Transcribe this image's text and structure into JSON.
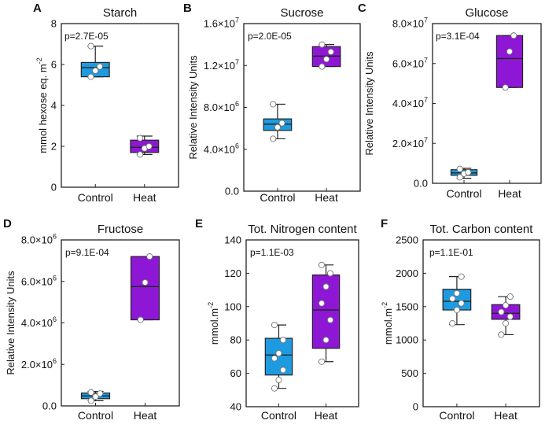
{
  "colors": {
    "control": "#1e9be0",
    "heat": "#8e17d6"
  },
  "chart_data": [
    {
      "type": "box",
      "letter": "A",
      "title": "Starch",
      "pvalue": "p=2.7E-05",
      "ylabel": "mmol hexose eq. m",
      "ylabel_sup": "-2",
      "ylim": [
        0,
        8
      ],
      "yticks": [
        {
          "v": 0,
          "label": "0"
        },
        {
          "v": 2,
          "label": "2"
        },
        {
          "v": 4,
          "label": "4"
        },
        {
          "v": 6,
          "label": "6"
        },
        {
          "v": 8,
          "label": "8"
        }
      ],
      "categories": [
        "Control",
        "Heat"
      ],
      "groups": [
        {
          "min": 5.4,
          "q1": 5.4,
          "median": 5.85,
          "q3": 6.1,
          "max": 6.9,
          "points": [
            5.4,
            5.7,
            5.9,
            6.9
          ]
        },
        {
          "min": 1.6,
          "q1": 1.7,
          "median": 1.95,
          "q3": 2.3,
          "max": 2.5,
          "points": [
            1.6,
            1.9,
            2.0,
            2.4
          ]
        }
      ]
    },
    {
      "type": "box",
      "letter": "B",
      "title": "Sucrose",
      "pvalue": "p=2.0E-05",
      "ylabel": "Relative Intensity Units",
      "ylabel_sup": "",
      "ylim": [
        0,
        16000000
      ],
      "yticks": [
        {
          "v": 0,
          "label": "0.0"
        },
        {
          "v": 4000000,
          "label": "4.0×10",
          "sup": "6"
        },
        {
          "v": 8000000,
          "label": "8.0×10",
          "sup": "6"
        },
        {
          "v": 12000000,
          "label": "1.2×10",
          "sup": "7"
        },
        {
          "v": 16000000,
          "label": "1.6×10",
          "sup": "7"
        }
      ],
      "categories": [
        "Control",
        "Heat"
      ],
      "groups": [
        {
          "min": 5000000,
          "q1": 5800000,
          "median": 6400000,
          "q3": 6900000,
          "max": 8300000,
          "points": [
            5000000,
            6100000,
            6500000,
            8300000
          ]
        },
        {
          "min": 11900000,
          "q1": 11900000,
          "median": 12900000,
          "q3": 13800000,
          "max": 14000000,
          "points": [
            11900000,
            12600000,
            13300000,
            14000000
          ]
        }
      ]
    },
    {
      "type": "box",
      "letter": "C",
      "title": "Glucose",
      "pvalue": "p=3.1E-04",
      "ylabel": "Relative Intensity Units",
      "ylabel_sup": "",
      "ylim": [
        0,
        80000000
      ],
      "yticks": [
        {
          "v": 0,
          "label": "0.0"
        },
        {
          "v": 20000000,
          "label": "2.0×10",
          "sup": "7"
        },
        {
          "v": 40000000,
          "label": "4.0×10",
          "sup": "7"
        },
        {
          "v": 60000000,
          "label": "6.0×10",
          "sup": "7"
        },
        {
          "v": 80000000,
          "label": "8.0×10",
          "sup": "7"
        }
      ],
      "categories": [
        "Control",
        "Heat"
      ],
      "groups": [
        {
          "min": 2500000,
          "q1": 4000000,
          "median": 5200000,
          "q3": 6800000,
          "max": 7500000,
          "points": [
            3000000,
            4800000,
            5500000,
            7200000
          ]
        },
        {
          "min": 48000000,
          "q1": 48000000,
          "median": 62500000,
          "q3": 74000000,
          "max": 74000000,
          "points": [
            48000000,
            66000000,
            74000000
          ]
        }
      ]
    },
    {
      "type": "box",
      "letter": "D",
      "title": "Fructose",
      "pvalue": "p=9.1E-04",
      "ylabel": "Relative Intensity Units",
      "ylabel_sup": "",
      "ylim": [
        0,
        8000000
      ],
      "yticks": [
        {
          "v": 0,
          "label": "0.0"
        },
        {
          "v": 2000000,
          "label": "2.0×10",
          "sup": "6"
        },
        {
          "v": 4000000,
          "label": "4.0×10",
          "sup": "6"
        },
        {
          "v": 6000000,
          "label": "6.0×10",
          "sup": "6"
        },
        {
          "v": 8000000,
          "label": "8.0×10",
          "sup": "6"
        }
      ],
      "categories": [
        "Control",
        "Heat"
      ],
      "groups": [
        {
          "min": 250000,
          "q1": 350000,
          "median": 480000,
          "q3": 620000,
          "max": 700000,
          "points": [
            250000,
            450000,
            600000,
            650000
          ]
        },
        {
          "min": 4150000,
          "q1": 4150000,
          "median": 5750000,
          "q3": 7200000,
          "max": 7200000,
          "points": [
            4150000,
            5950000,
            7200000
          ]
        }
      ]
    },
    {
      "type": "box",
      "letter": "E",
      "title": "Tot. Nitrogen content",
      "pvalue": "p=1.1E-03",
      "ylabel": "mmol.m",
      "ylabel_sup": "-2",
      "ylim": [
        40,
        140
      ],
      "yticks": [
        {
          "v": 40,
          "label": "40"
        },
        {
          "v": 60,
          "label": "60"
        },
        {
          "v": 80,
          "label": "80"
        },
        {
          "v": 100,
          "label": "100"
        },
        {
          "v": 120,
          "label": "120"
        },
        {
          "v": 140,
          "label": "140"
        }
      ],
      "categories": [
        "Control",
        "Heat"
      ],
      "groups": [
        {
          "min": 51,
          "q1": 59,
          "median": 71,
          "q3": 81,
          "max": 89,
          "points": [
            51,
            56,
            62,
            69,
            72,
            80,
            89
          ]
        },
        {
          "min": 67,
          "q1": 75,
          "median": 98,
          "q3": 119,
          "max": 125,
          "points": [
            67,
            80,
            92,
            102,
            112,
            120,
            125
          ]
        }
      ]
    },
    {
      "type": "box",
      "letter": "F",
      "title": "Tot. Carbon content",
      "pvalue": "p=1.1E-01",
      "ylabel": "mmol.m",
      "ylabel_sup": "-2",
      "ylim": [
        0,
        2500
      ],
      "yticks": [
        {
          "v": 0,
          "label": "0"
        },
        {
          "v": 500,
          "label": "500"
        },
        {
          "v": 1000,
          "label": "1000"
        },
        {
          "v": 1500,
          "label": "1500"
        },
        {
          "v": 2000,
          "label": "2000"
        },
        {
          "v": 2500,
          "label": "2500"
        }
      ],
      "categories": [
        "Control",
        "Heat"
      ],
      "groups": [
        {
          "min": 1230,
          "q1": 1450,
          "median": 1580,
          "q3": 1760,
          "max": 1950,
          "points": [
            1250,
            1450,
            1550,
            1620,
            1700,
            1950
          ]
        },
        {
          "min": 1080,
          "q1": 1310,
          "median": 1400,
          "q3": 1530,
          "max": 1650,
          "points": [
            1080,
            1250,
            1350,
            1420,
            1520,
            1650
          ]
        }
      ]
    }
  ]
}
